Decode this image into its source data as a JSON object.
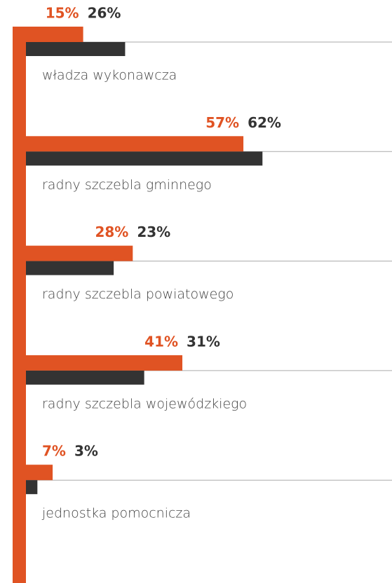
{
  "chart_data": {
    "type": "bar",
    "categories": [
      "władza wykonawcza",
      "radny szczebla gminnego",
      "radny szczebla powiatowego",
      "radny szczebla wojewódzkiego",
      "jednostka pomocnicza"
    ],
    "series": [
      {
        "color": "#e05323",
        "values": [
          15,
          57,
          28,
          41,
          7
        ],
        "value_labels": [
          "15%",
          "57%",
          "28%",
          "41%",
          "7%"
        ]
      },
      {
        "color": "#333333",
        "values": [
          26,
          62,
          23,
          31,
          3
        ],
        "value_labels": [
          "26%",
          "62%",
          "23%",
          "31%",
          "3%"
        ]
      }
    ]
  }
}
